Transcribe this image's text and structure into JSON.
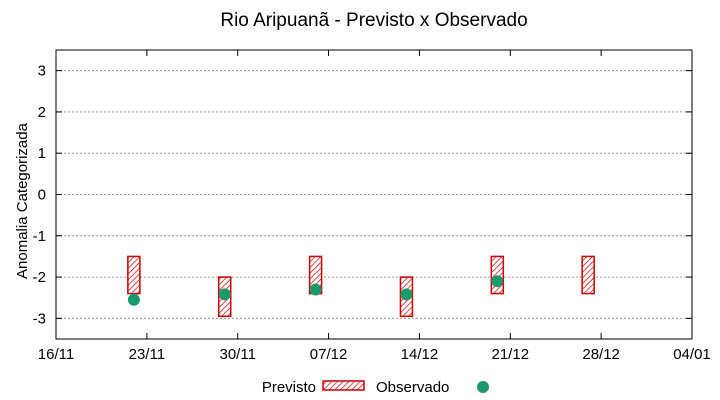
{
  "chart_data": {
    "type": "box",
    "title": "Rio Aripuanã - Previsto x Observado",
    "xlabel": "",
    "ylabel": "Anomalia Categorizada",
    "x_ticks": [
      "16/11",
      "23/11",
      "30/11",
      "07/12",
      "14/12",
      "21/12",
      "28/12",
      "04/01"
    ],
    "xlim": [
      "16/11",
      "04/01"
    ],
    "y_ticks": [
      3,
      2,
      1,
      0,
      -1,
      -2,
      -3
    ],
    "ylim": [
      -3.5,
      3.5
    ],
    "grid": true,
    "legend_position": "bottom",
    "series": [
      {
        "name": "Previsto",
        "style": "hatched-box",
        "color": "#cc0000",
        "points": [
          {
            "x": "22/11",
            "low": -2.4,
            "high": -1.5
          },
          {
            "x": "29/11",
            "low": -2.95,
            "high": -2.0
          },
          {
            "x": "06/12",
            "low": -2.4,
            "high": -1.5
          },
          {
            "x": "13/12",
            "low": -2.95,
            "high": -2.0
          },
          {
            "x": "20/12",
            "low": -2.4,
            "high": -1.5
          },
          {
            "x": "27/12",
            "low": -2.4,
            "high": -1.5
          }
        ]
      },
      {
        "name": "Observado",
        "style": "marker",
        "color": "#1a9a6c",
        "points": [
          {
            "x": "22/11",
            "y": -2.55
          },
          {
            "x": "29/11",
            "y": -2.42
          },
          {
            "x": "06/12",
            "y": -2.3
          },
          {
            "x": "13/12",
            "y": -2.42
          },
          {
            "x": "20/12",
            "y": -2.1
          }
        ]
      }
    ]
  }
}
